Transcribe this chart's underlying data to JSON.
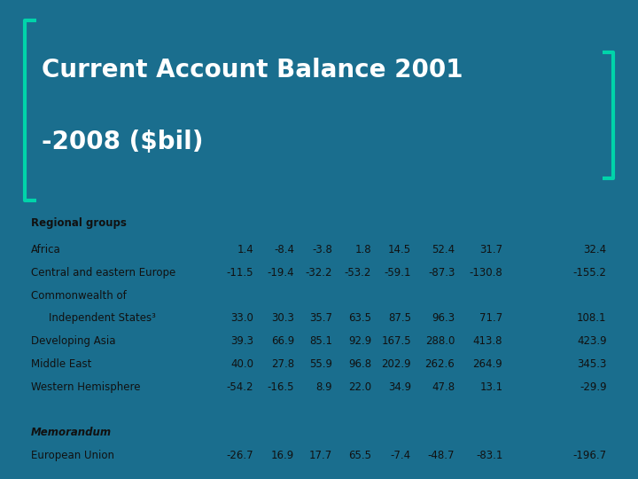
{
  "title_line1": "Current Account Balance 2001",
  "title_line2": "-2008 ($bil)",
  "bg_color": "#1a6e8e",
  "table_bg": "#cdd4db",
  "title_color": "#ffffff",
  "bracket_color": "#00d4aa",
  "rows": [
    [
      "Africa",
      "1.4",
      "-8.4",
      "-3.8",
      "1.8",
      "14.5",
      "52.4",
      "31.7",
      "32.4"
    ],
    [
      "Central and eastern Europe",
      "-11.5",
      "-19.4",
      "-32.2",
      "-53.2",
      "-59.1",
      "-87.3",
      "-130.8",
      "-155.2"
    ],
    [
      "Commonwealth of",
      "",
      "",
      "",
      "",
      "",
      "",
      "",
      ""
    ],
    [
      "  Independent States³",
      "33.0",
      "30.3",
      "35.7",
      "63.5",
      "87.5",
      "96.3",
      "71.7",
      "108.1"
    ],
    [
      "Developing Asia",
      "39.3",
      "66.9",
      "85.1",
      "92.9",
      "167.5",
      "288.0",
      "413.8",
      "423.9"
    ],
    [
      "Middle East",
      "40.0",
      "27.8",
      "55.9",
      "96.8",
      "202.9",
      "262.6",
      "264.9",
      "345.3"
    ],
    [
      "Western Hemisphere",
      "-54.2",
      "-16.5",
      "8.9",
      "22.0",
      "34.9",
      "47.8",
      "13.1",
      "-29.9"
    ]
  ],
  "memorandum_label": "Memorandum",
  "memorandum_row": [
    "European Union",
    "-26.7",
    "16.9",
    "17.7",
    "65.5",
    "-7.4",
    "-48.7",
    "-83.1",
    "-196.7"
  ],
  "title_fontsize": 20,
  "table_fontsize": 8.5,
  "header_fontsize": 8.5
}
